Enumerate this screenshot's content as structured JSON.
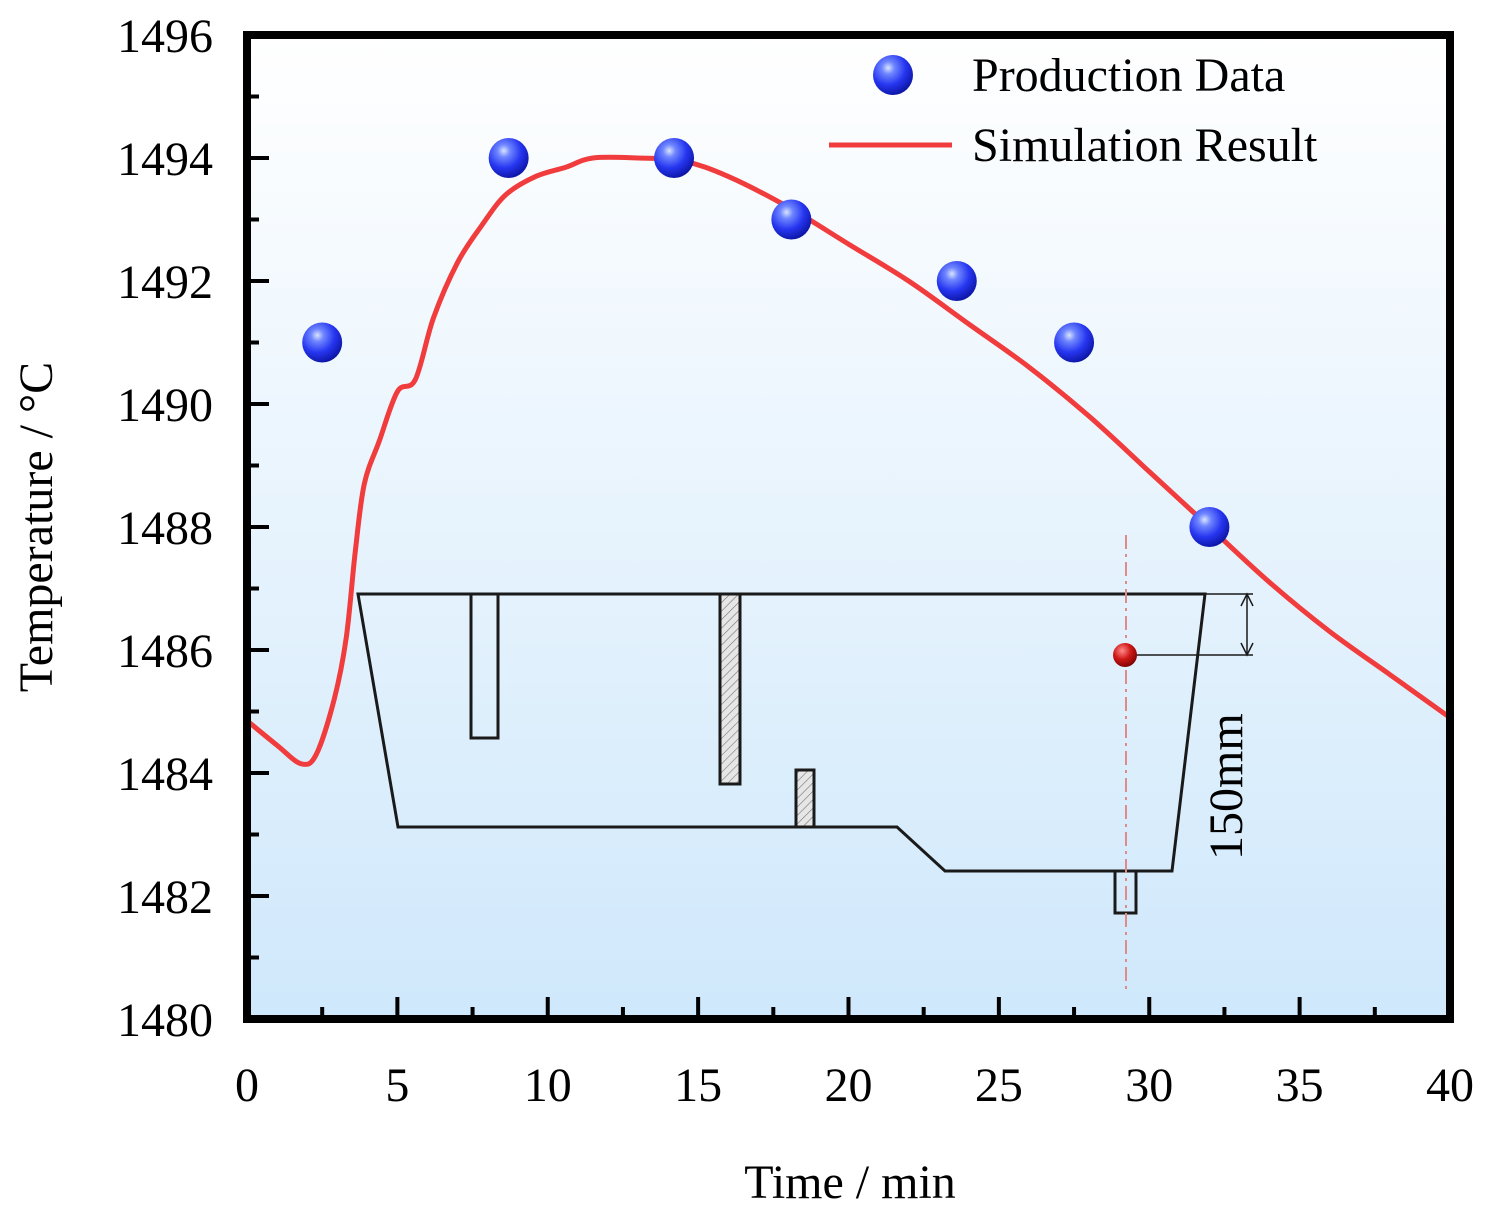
{
  "chart_data": {
    "type": "line",
    "xlabel": "Time / min",
    "ylabel": "Temperature / °C",
    "xlim": [
      0,
      40
    ],
    "ylim": [
      1480,
      1496
    ],
    "x_major_ticks": [
      0,
      5,
      10,
      15,
      20,
      25,
      30,
      35,
      40
    ],
    "x_minor_ticks": [
      2.5,
      7.5,
      12.5,
      17.5,
      22.5,
      27.5,
      32.5,
      37.5
    ],
    "y_major_ticks": [
      1480,
      1482,
      1484,
      1486,
      1488,
      1490,
      1492,
      1494,
      1496
    ],
    "y_minor_ticks": [
      1481,
      1483,
      1485,
      1487,
      1489,
      1491,
      1493,
      1495
    ],
    "grid": false,
    "legend_position": "top-right",
    "series": [
      {
        "name": "Production Data",
        "kind": "scatter",
        "color": "#2233ee",
        "points": [
          {
            "x": 2.5,
            "y": 1491
          },
          {
            "x": 8.7,
            "y": 1494
          },
          {
            "x": 14.2,
            "y": 1494
          },
          {
            "x": 18.1,
            "y": 1493
          },
          {
            "x": 23.6,
            "y": 1492
          },
          {
            "x": 27.5,
            "y": 1491
          },
          {
            "x": 32.0,
            "y": 1488
          }
        ]
      },
      {
        "name": "Simulation Result",
        "kind": "line",
        "color": "#f03c3c",
        "points": [
          {
            "x": 0,
            "y": 1484.85
          },
          {
            "x": 1.0,
            "y": 1484.45
          },
          {
            "x": 1.8,
            "y": 1484.15
          },
          {
            "x": 2.3,
            "y": 1484.3
          },
          {
            "x": 2.9,
            "y": 1485.2
          },
          {
            "x": 3.3,
            "y": 1486.2
          },
          {
            "x": 3.6,
            "y": 1487.6
          },
          {
            "x": 3.9,
            "y": 1488.7
          },
          {
            "x": 4.4,
            "y": 1489.4
          },
          {
            "x": 5.0,
            "y": 1490.2
          },
          {
            "x": 5.6,
            "y": 1490.4
          },
          {
            "x": 6.2,
            "y": 1491.4
          },
          {
            "x": 7.0,
            "y": 1492.3
          },
          {
            "x": 7.8,
            "y": 1492.9
          },
          {
            "x": 8.6,
            "y": 1493.4
          },
          {
            "x": 9.6,
            "y": 1493.7
          },
          {
            "x": 10.6,
            "y": 1493.85
          },
          {
            "x": 11.5,
            "y": 1494.0
          },
          {
            "x": 13.0,
            "y": 1494.0
          },
          {
            "x": 14.5,
            "y": 1493.95
          },
          {
            "x": 16.0,
            "y": 1493.7
          },
          {
            "x": 18.0,
            "y": 1493.2
          },
          {
            "x": 20.0,
            "y": 1492.6
          },
          {
            "x": 22.0,
            "y": 1492.0
          },
          {
            "x": 24.0,
            "y": 1491.3
          },
          {
            "x": 26.0,
            "y": 1490.6
          },
          {
            "x": 28.0,
            "y": 1489.8
          },
          {
            "x": 30.0,
            "y": 1488.9
          },
          {
            "x": 32.0,
            "y": 1488.0
          },
          {
            "x": 34.0,
            "y": 1487.1
          },
          {
            "x": 36.0,
            "y": 1486.3
          },
          {
            "x": 38.0,
            "y": 1485.6
          },
          {
            "x": 40.0,
            "y": 1484.9
          }
        ]
      }
    ],
    "inset": {
      "description": "tundish cross-section with monitoring point",
      "annotation": "150mm",
      "monitor_point_color": "#cc1111"
    }
  }
}
